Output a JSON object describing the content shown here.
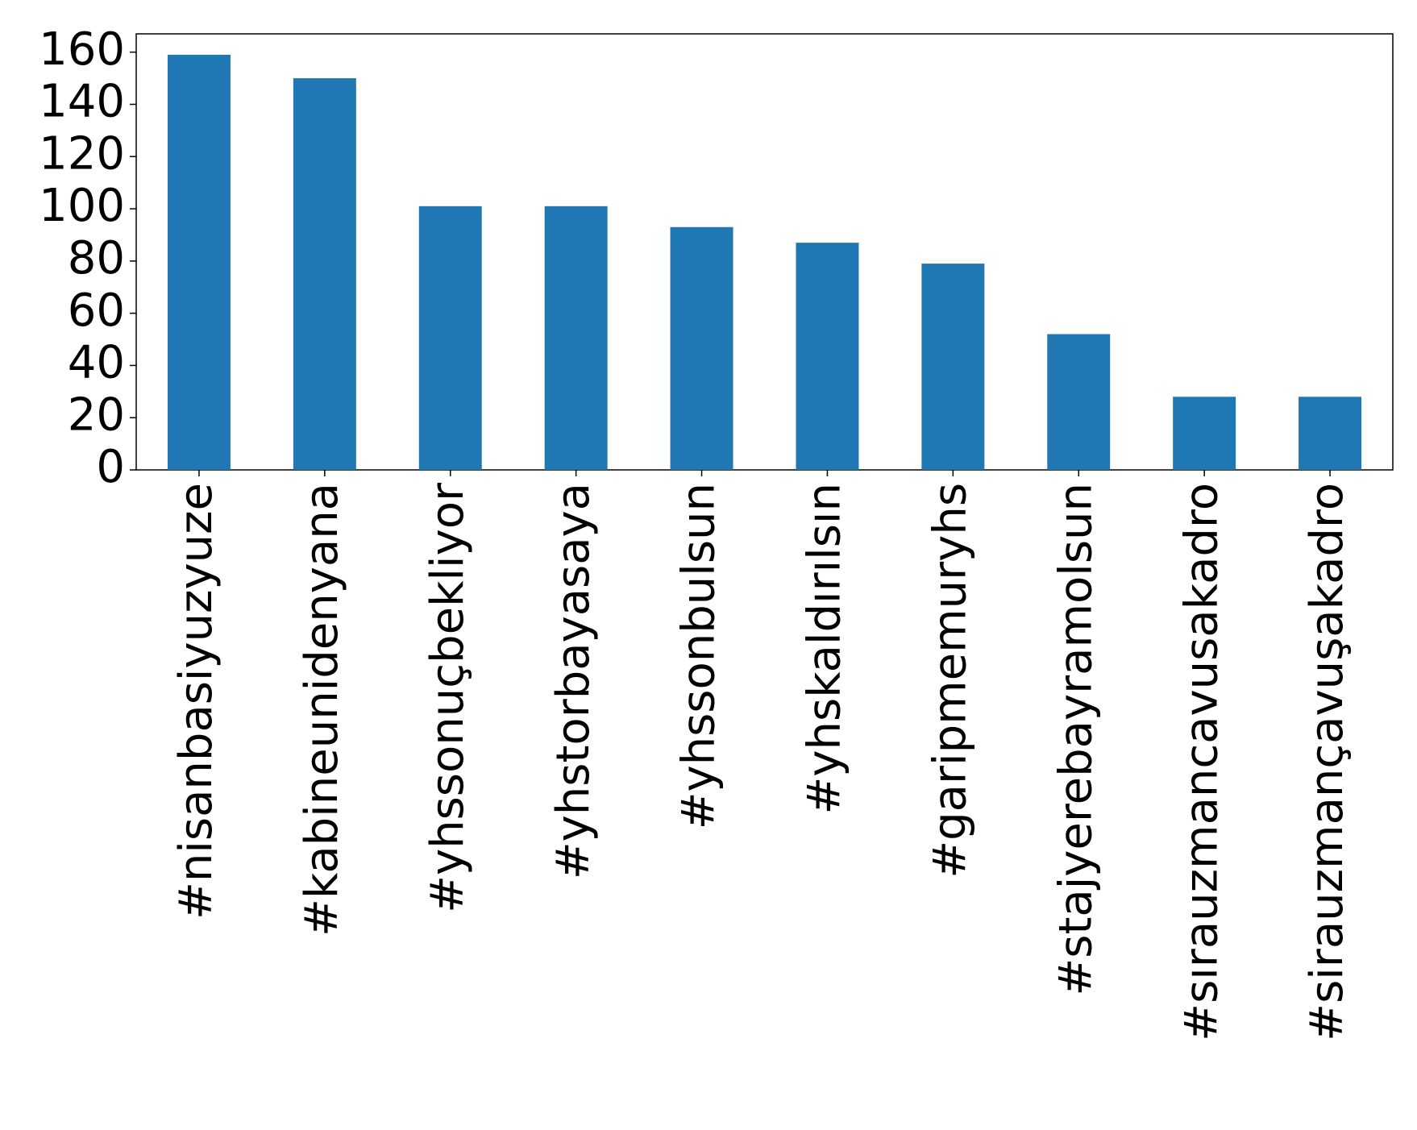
{
  "chart_data": {
    "type": "bar",
    "categories": [
      "#nisanbasiyuzyuze",
      "#kabineunidenyana",
      "#yhssonuçbekliyor",
      "#yhstorbayasaya",
      "#yhssonbulsun",
      "#yhskaldırılsın",
      "#garipmemuryhs",
      "#stajyerebayramolsun",
      "#sırauzmancavusakadro",
      "#sirauzmançavuşakadro"
    ],
    "values": [
      159,
      150,
      101,
      101,
      93,
      87,
      79,
      52,
      28,
      28
    ],
    "color": "#1f77b4",
    "ylim": [
      0,
      167
    ],
    "yticks": [
      0,
      20,
      40,
      60,
      80,
      100,
      120,
      140,
      160
    ],
    "grid": false
  }
}
